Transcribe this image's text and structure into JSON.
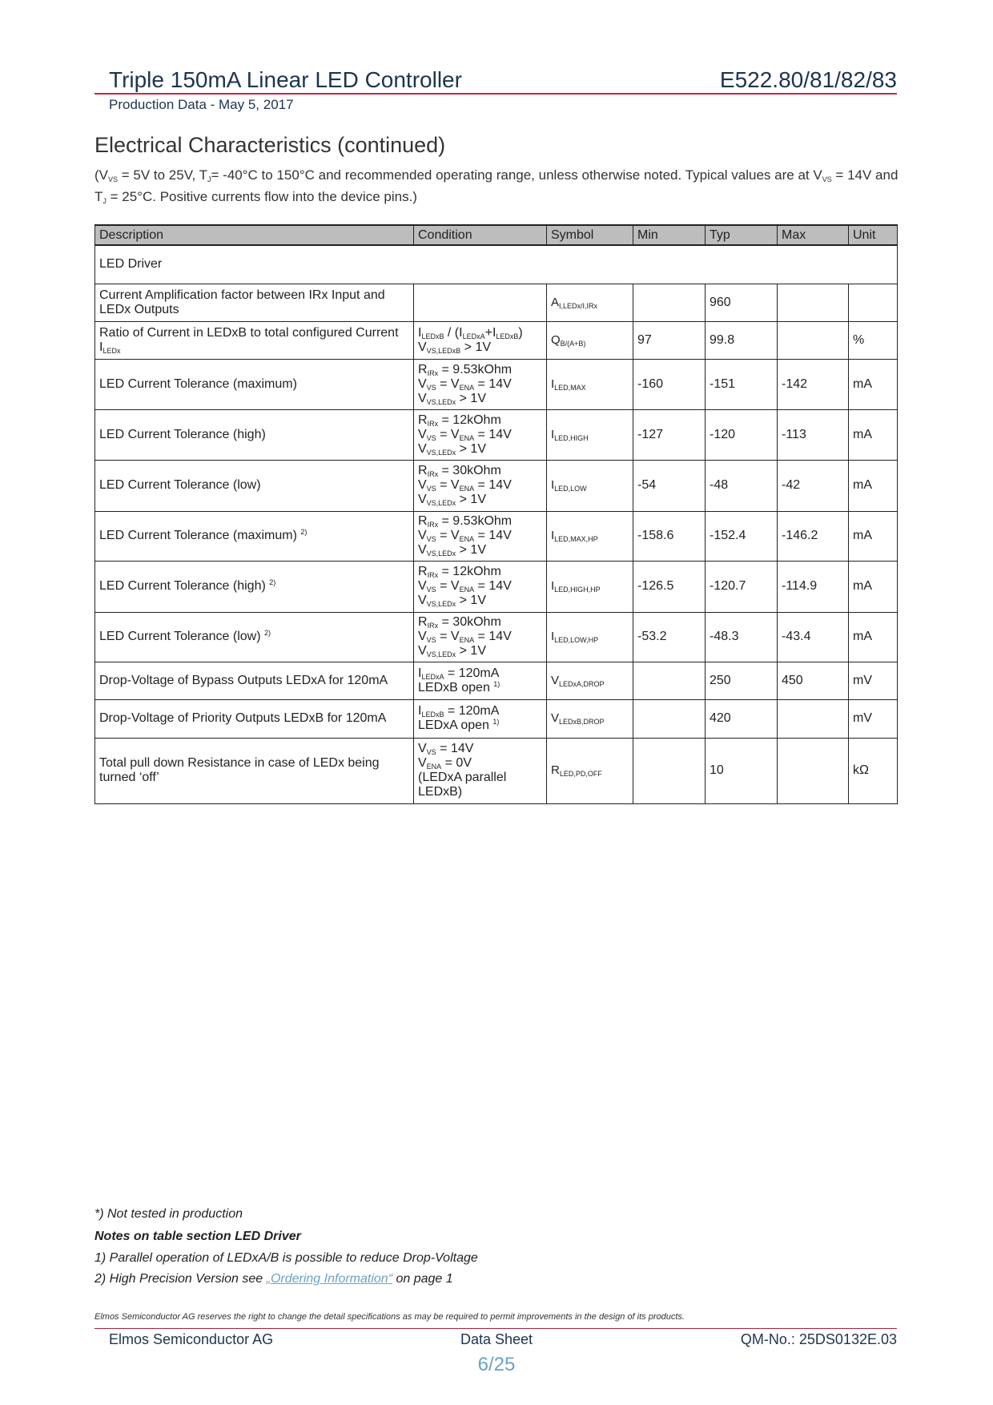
{
  "header": {
    "title": "Triple 150mA Linear LED Controller",
    "part_numbers": "E522.80/81/82/83",
    "subtitle": "Production Data - May 5, 2017"
  },
  "section": {
    "heading": "Electrical Characteristics (continued)",
    "conditions": [
      {
        "t": "(V"
      },
      {
        "sub": "VS"
      },
      {
        "t": " = 5V to 25V, T"
      },
      {
        "sub": "J"
      },
      {
        "t": "= -40°C to 150°C and recommended operating range, unless otherwise noted. Typical values are at V"
      },
      {
        "sub": "VS"
      },
      {
        "t": " = 14V and T"
      },
      {
        "sub": "J"
      },
      {
        "t": " = 25°C. Positive currents flow into the device pins.)"
      }
    ]
  },
  "table": {
    "columns": [
      "Description",
      "Condition",
      "Symbol",
      "Min",
      "Typ",
      "Max",
      "Unit"
    ],
    "section_label": "LED Driver",
    "rows": [
      {
        "description": [
          {
            "t": "Current Amplification factor between IRx Input and LEDx Outputs"
          }
        ],
        "condition": [],
        "symbol": [
          {
            "t": "A"
          },
          {
            "sub": "I,LEDx/I,IRx"
          }
        ],
        "min": "",
        "typ": "960",
        "max": "",
        "unit": ""
      },
      {
        "description": [
          {
            "t": "Ratio of Current in LEDxB to total configured Current I"
          },
          {
            "sub": "LEDx"
          }
        ],
        "condition": [
          [
            {
              "t": "I"
            },
            {
              "sub": "LEDxB"
            },
            {
              "t": " / (I"
            },
            {
              "sub": "LEDxA"
            },
            {
              "t": "+I"
            },
            {
              "sub": "LEDxB"
            },
            {
              "t": ")"
            }
          ],
          [
            {
              "t": "V"
            },
            {
              "sub": "VS,LEDxB"
            },
            {
              "t": " > 1V"
            }
          ]
        ],
        "symbol": [
          {
            "t": "Q"
          },
          {
            "sub": "B/(A+B)"
          }
        ],
        "min": "97",
        "typ": "99.8",
        "max": "",
        "unit": "%"
      },
      {
        "description": [
          {
            "t": "LED Current Tolerance (maximum)"
          }
        ],
        "condition": [
          [
            {
              "t": "R"
            },
            {
              "sub": "IRx"
            },
            {
              "t": " = 9.53kOhm"
            }
          ],
          [
            {
              "t": "V"
            },
            {
              "sub": "VS"
            },
            {
              "t": " = V"
            },
            {
              "sub": "ENA"
            },
            {
              "t": " = 14V"
            }
          ],
          [
            {
              "t": "V"
            },
            {
              "sub": "VS,LEDx"
            },
            {
              "t": " > 1V"
            }
          ]
        ],
        "symbol": [
          {
            "t": "I"
          },
          {
            "sub": "LED,MAX"
          }
        ],
        "min": "-160",
        "typ": "-151",
        "max": "-142",
        "unit": "mA"
      },
      {
        "description": [
          {
            "t": "LED Current Tolerance (high)"
          }
        ],
        "condition": [
          [
            {
              "t": "R"
            },
            {
              "sub": "IRx"
            },
            {
              "t": " = 12kOhm"
            }
          ],
          [
            {
              "t": "V"
            },
            {
              "sub": "VS"
            },
            {
              "t": " = V"
            },
            {
              "sub": "ENA"
            },
            {
              "t": " = 14V"
            }
          ],
          [
            {
              "t": "V"
            },
            {
              "sub": "VS,LEDx"
            },
            {
              "t": " > 1V"
            }
          ]
        ],
        "symbol": [
          {
            "t": "I"
          },
          {
            "sub": "LED,HIGH"
          }
        ],
        "min": "-127",
        "typ": "-120",
        "max": "-113",
        "unit": "mA"
      },
      {
        "description": [
          {
            "t": "LED Current Tolerance (low)"
          }
        ],
        "condition": [
          [
            {
              "t": "R"
            },
            {
              "sub": "IRx"
            },
            {
              "t": " = 30kOhm"
            }
          ],
          [
            {
              "t": "V"
            },
            {
              "sub": "VS"
            },
            {
              "t": " = V"
            },
            {
              "sub": "ENA"
            },
            {
              "t": " = 14V"
            }
          ],
          [
            {
              "t": "V"
            },
            {
              "sub": "VS,LEDx"
            },
            {
              "t": " > 1V"
            }
          ]
        ],
        "symbol": [
          {
            "t": "I"
          },
          {
            "sub": "LED,LOW"
          }
        ],
        "min": "-54",
        "typ": "-48",
        "max": "-42",
        "unit": "mA"
      },
      {
        "description": [
          {
            "t": "LED Current Tolerance (maximum) "
          },
          {
            "sup": "2)"
          }
        ],
        "condition": [
          [
            {
              "t": "R"
            },
            {
              "sub": "IRx"
            },
            {
              "t": " = 9.53kOhm"
            }
          ],
          [
            {
              "t": "V"
            },
            {
              "sub": "VS"
            },
            {
              "t": " = V"
            },
            {
              "sub": "ENA"
            },
            {
              "t": " = 14V"
            }
          ],
          [
            {
              "t": "V"
            },
            {
              "sub": "VS,LEDx"
            },
            {
              "t": " > 1V"
            }
          ]
        ],
        "symbol": [
          {
            "t": "I"
          },
          {
            "sub": "LED,MAX,HP"
          }
        ],
        "min": "-158.6",
        "typ": "-152.4",
        "max": "-146.2",
        "unit": "mA"
      },
      {
        "description": [
          {
            "t": "LED Current Tolerance (high) "
          },
          {
            "sup": "2)"
          }
        ],
        "condition": [
          [
            {
              "t": "R"
            },
            {
              "sub": "IRx"
            },
            {
              "t": " = 12kOhm"
            }
          ],
          [
            {
              "t": "V"
            },
            {
              "sub": "VS"
            },
            {
              "t": " = V"
            },
            {
              "sub": "ENA"
            },
            {
              "t": " = 14V"
            }
          ],
          [
            {
              "t": "V"
            },
            {
              "sub": "VS,LEDx"
            },
            {
              "t": " > 1V"
            }
          ]
        ],
        "symbol": [
          {
            "t": "I"
          },
          {
            "sub": "LED,HIGH,HP"
          }
        ],
        "min": "-126.5",
        "typ": "-120.7",
        "max": "-114.9",
        "unit": "mA"
      },
      {
        "description": [
          {
            "t": "LED Current Tolerance (low) "
          },
          {
            "sup": "2)"
          }
        ],
        "condition": [
          [
            {
              "t": "R"
            },
            {
              "sub": "IRx"
            },
            {
              "t": " = 30kOhm"
            }
          ],
          [
            {
              "t": "V"
            },
            {
              "sub": "VS"
            },
            {
              "t": " = V"
            },
            {
              "sub": "ENA"
            },
            {
              "t": " = 14V"
            }
          ],
          [
            {
              "t": "V"
            },
            {
              "sub": "VS,LEDx"
            },
            {
              "t": " > 1V"
            }
          ]
        ],
        "symbol": [
          {
            "t": "I"
          },
          {
            "sub": "LED,LOW,HP"
          }
        ],
        "min": "-53.2",
        "typ": "-48.3",
        "max": "-43.4",
        "unit": "mA"
      },
      {
        "description": [
          {
            "t": "Drop-Voltage of Bypass Outputs LEDxA for 120mA"
          }
        ],
        "condition": [
          [
            {
              "t": "I"
            },
            {
              "sub": "LEDxA"
            },
            {
              "t": " = 120mA"
            }
          ],
          [
            {
              "t": "LEDxB open "
            },
            {
              "sup": "1)"
            }
          ]
        ],
        "symbol": [
          {
            "t": "V"
          },
          {
            "sub": "LEDxA,DROP"
          }
        ],
        "min": "",
        "typ": "250",
        "max": "450",
        "unit": "mV"
      },
      {
        "description": [
          {
            "t": "Drop-Voltage of Priority Outputs LEDxB for 120mA"
          }
        ],
        "condition": [
          [
            {
              "t": "I"
            },
            {
              "sub": "LEDxB"
            },
            {
              "t": " = 120mA"
            }
          ],
          [
            {
              "t": "LEDxA open "
            },
            {
              "sup": "1)"
            }
          ]
        ],
        "symbol": [
          {
            "t": "V"
          },
          {
            "sub": "LEDxB,DROP"
          }
        ],
        "min": "",
        "typ": "420",
        "max": "",
        "unit": "mV"
      },
      {
        "description": [
          {
            "t": "Total pull down Resistance in case of LEDx being turned ‘off’"
          }
        ],
        "condition": [
          [
            {
              "t": "V"
            },
            {
              "sub": "VS"
            },
            {
              "t": " = 14V"
            }
          ],
          [
            {
              "t": "V"
            },
            {
              "sub": "ENA"
            },
            {
              "t": " = 0V"
            }
          ],
          [
            {
              "t": "(LEDxA parallel LEDxB)"
            }
          ]
        ],
        "symbol": [
          {
            "t": "R"
          },
          {
            "sub": "LED,PD,OFF"
          }
        ],
        "min": "",
        "typ": "10",
        "max": "",
        "unit": "kΩ"
      }
    ]
  },
  "notes": {
    "not_tested": "*) Not tested in production",
    "section_title": "Notes on table section LED Driver",
    "note1": "1) Parallel operation of LEDxA/B is possible to reduce Drop-Voltage",
    "note2_prefix": "2) High Precision Version see ",
    "note2_link": "„Ordering Information“",
    "note2_suffix": " on page 1"
  },
  "footer": {
    "disclaimer": "Elmos Semiconductor AG reserves the right to change the detail specifications as may be required to permit improvements in the design of its products.",
    "company": "Elmos Semiconductor AG",
    "doc_type": "Data Sheet",
    "qm_number": "QM-No.: 25DS0132E.03",
    "page": "6/25"
  },
  "colors": {
    "accent_line": "#c8234a",
    "header_text": "#1d3450",
    "link": "#6aa3c4",
    "table_header_bg": "#bdbdbd"
  }
}
